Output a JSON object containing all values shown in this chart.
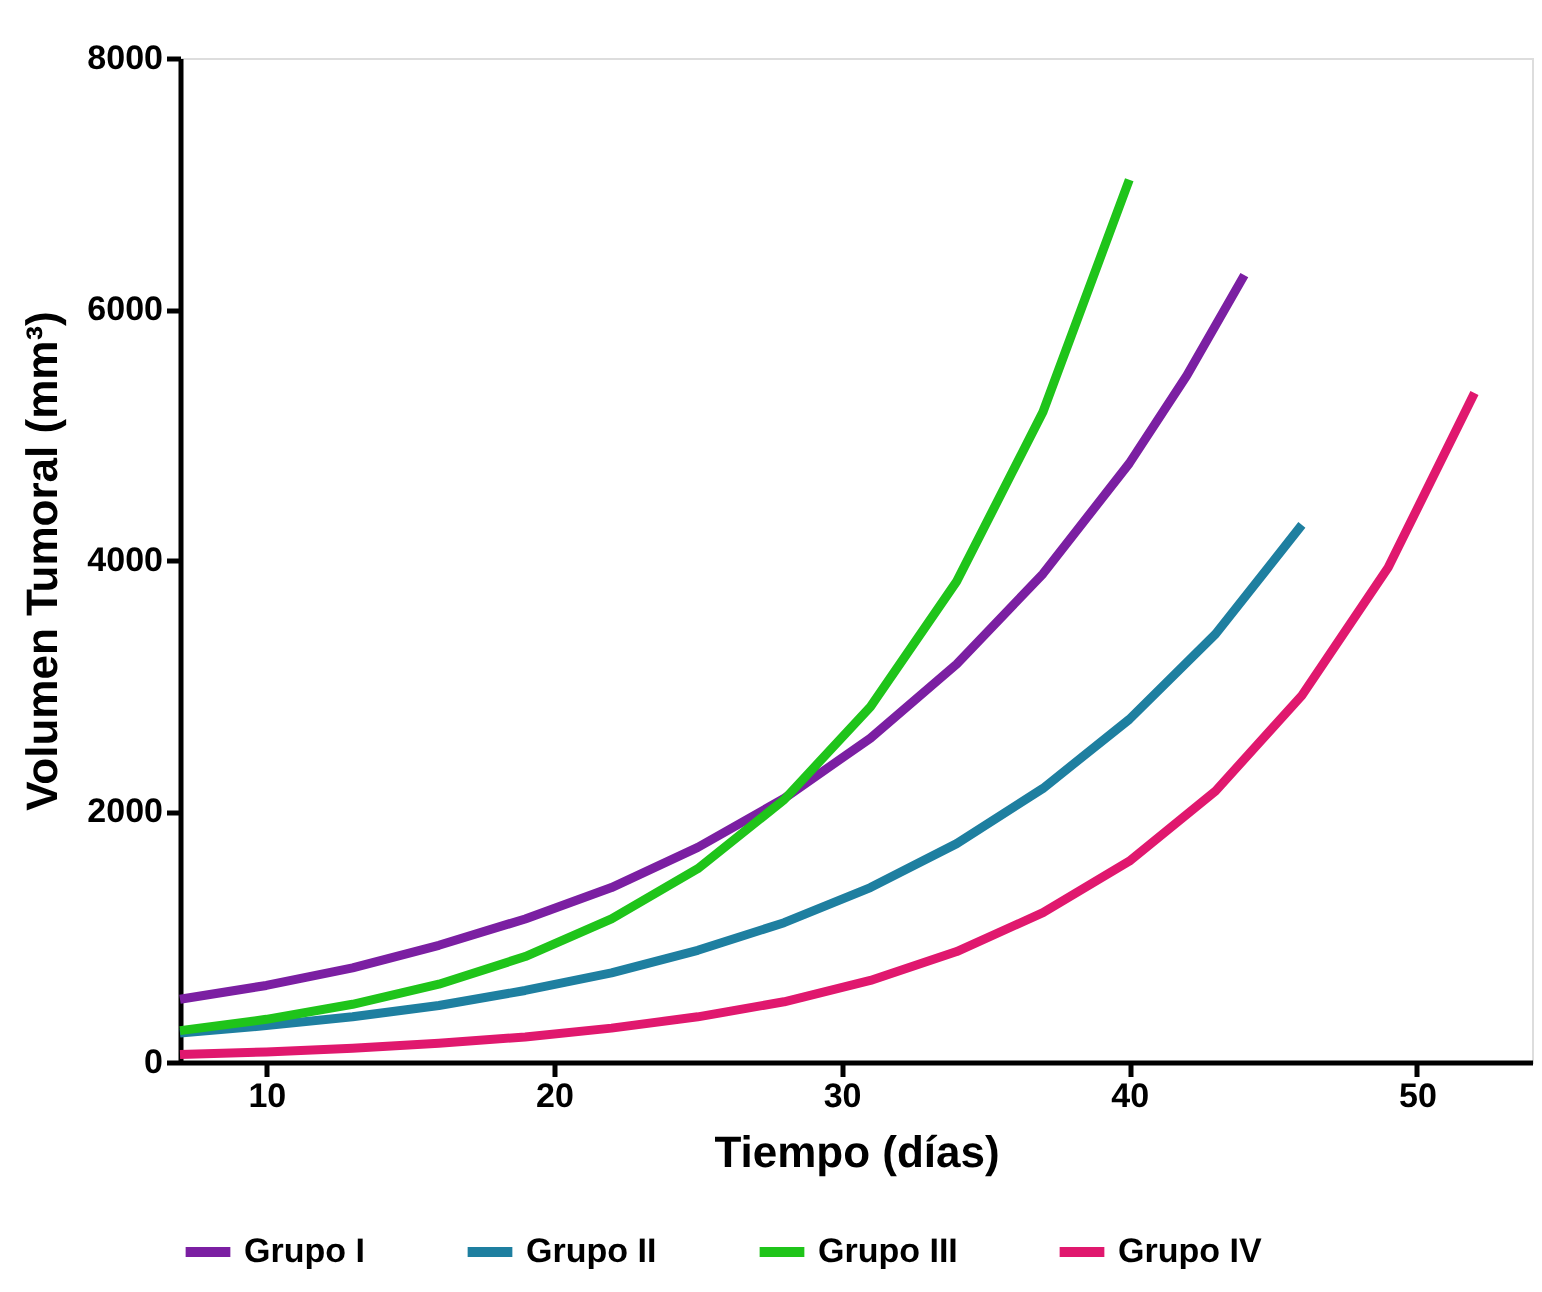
{
  "chart_data": {
    "type": "line",
    "xlabel": "Tiempo (días)",
    "ylabel": "Volumen Tumoral (mm³)",
    "xlim": [
      7,
      54
    ],
    "ylim": [
      0,
      8000
    ],
    "xticks": [
      10,
      20,
      30,
      40,
      50
    ],
    "yticks": [
      0,
      2000,
      4000,
      6000,
      8000
    ],
    "grid": false,
    "legend": "bottom",
    "marker": "none",
    "line_style": "solid",
    "series": [
      {
        "name": "Grupo I",
        "color": "#7b1fa2",
        "x": [
          7,
          10,
          13,
          16,
          19,
          22,
          25,
          28,
          31,
          34,
          37,
          40,
          42,
          44
        ],
        "values": [
          500,
          610,
          750,
          930,
          1140,
          1390,
          1710,
          2100,
          2580,
          3170,
          3890,
          4770,
          5470,
          6270
        ]
      },
      {
        "name": "Grupo II",
        "color": "#1e7fa0",
        "x": [
          7,
          10,
          13,
          16,
          19,
          22,
          25,
          28,
          31,
          34,
          37,
          40,
          43,
          46
        ],
        "values": [
          230,
          290,
          360,
          450,
          570,
          710,
          890,
          1110,
          1390,
          1740,
          2180,
          2730,
          3410,
          4280
        ]
      },
      {
        "name": "Grupo III",
        "color": "#1fc41a",
        "x": [
          7,
          10,
          13,
          16,
          19,
          22,
          25,
          28,
          31,
          34,
          37,
          40
        ],
        "values": [
          250,
          340,
          460,
          620,
          840,
          1140,
          1540,
          2090,
          2830,
          3830,
          5180,
          7030
        ]
      },
      {
        "name": "Grupo IV",
        "color": "#e0186e",
        "x": [
          7,
          10,
          13,
          16,
          19,
          22,
          25,
          28,
          31,
          34,
          37,
          40,
          43,
          46,
          49,
          52
        ],
        "values": [
          60,
          80,
          110,
          150,
          200,
          270,
          360,
          480,
          650,
          880,
          1190,
          1600,
          2160,
          2920,
          3940,
          5330
        ]
      }
    ]
  }
}
